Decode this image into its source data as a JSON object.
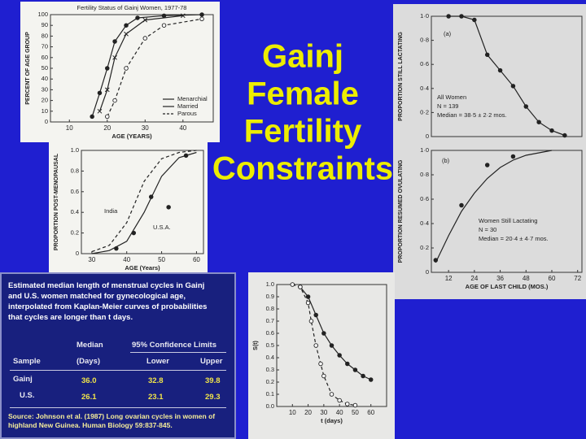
{
  "slide": {
    "title_lines": [
      "Gainj",
      "Female",
      "Fertility",
      "Constraints"
    ]
  },
  "chart_data": [
    {
      "type": "line",
      "title": "Fertility Status of Gainj Women, 1977-78",
      "x_label": "AGE (YEARS)",
      "y_label": "PERCENT OF AGE GROUP",
      "xlim": [
        5,
        48
      ],
      "xticks": [
        10,
        20,
        30,
        40
      ],
      "ylim": [
        0,
        100
      ],
      "yticks": [
        0,
        10,
        20,
        30,
        40,
        50,
        60,
        70,
        80,
        90,
        100
      ],
      "legend": "lower right",
      "series": [
        {
          "name": "Menarchial",
          "color": "#222222",
          "line": "solid",
          "marker": "filled-circle",
          "x": [
            16,
            18,
            20,
            22,
            25,
            28,
            35,
            45
          ],
          "values": [
            5,
            27,
            50,
            75,
            90,
            97,
            99,
            100
          ]
        },
        {
          "name": "Married",
          "color": "#222222",
          "line": "solid",
          "marker": "x",
          "x": [
            18,
            20,
            22,
            25,
            30,
            40
          ],
          "values": [
            10,
            30,
            60,
            82,
            95,
            99
          ]
        },
        {
          "name": "Parous",
          "color": "#222222",
          "line": "dashed",
          "marker": "open-circle",
          "x": [
            20,
            22,
            25,
            30,
            35,
            45
          ],
          "values": [
            5,
            20,
            50,
            78,
            90,
            96
          ]
        }
      ]
    },
    {
      "type": "line",
      "x_label": "AGE (Years)",
      "y_label": "PROPORTION POST-MENOPAUSAL",
      "xlim": [
        27,
        62
      ],
      "xticks": [
        30,
        40,
        50,
        60
      ],
      "ylim": [
        0,
        1
      ],
      "yticks": [
        0,
        0.2,
        0.4,
        0.6,
        0.8,
        {
          "value": 1,
          "label": "1.0"
        }
      ],
      "annotations": [
        "India",
        "U.S.A."
      ],
      "series": [
        {
          "color": "#222222",
          "line": "dashed",
          "marker": "none",
          "x": [
            30,
            35,
            40,
            45,
            50,
            55,
            60
          ],
          "values": [
            0.02,
            0.08,
            0.3,
            0.7,
            0.92,
            0.98,
            1
          ]
        },
        {
          "color": "#222222",
          "line": "solid",
          "marker": "none",
          "x": [
            30,
            35,
            40,
            45,
            50,
            55,
            60
          ],
          "values": [
            0,
            0.03,
            0.12,
            0.4,
            0.75,
            0.93,
            0.98
          ]
        },
        {
          "color": "#222222",
          "line": "none",
          "marker": "filled-circle",
          "x": [
            37,
            42,
            47,
            52,
            57
          ],
          "values": [
            0.05,
            0.2,
            0.55,
            0.45,
            0.95
          ]
        }
      ]
    },
    {
      "type": "line",
      "y_label": "PROPORTION STILL LACTATING",
      "xlim": [
        4,
        74
      ],
      "ylim": [
        0,
        1
      ],
      "yticks": [
        0,
        {
          "value": 0.2,
          "label": "0·2"
        },
        {
          "value": 0.4,
          "label": "0·4"
        },
        {
          "value": 0.6,
          "label": "0·6"
        },
        {
          "value": 0.8,
          "label": "0·8"
        },
        {
          "value": 1,
          "label": "1·0"
        }
      ],
      "annotations": [
        "(a)",
        "All Women",
        "N = 139",
        "Median = 38·5 ± 2·2 mos."
      ],
      "series": [
        {
          "color": "#222222",
          "line": "solid",
          "marker": "filled-circle",
          "x": [
            12,
            18,
            24,
            30,
            36,
            42,
            48,
            54,
            60,
            66
          ],
          "values": [
            1,
            1,
            0.97,
            0.68,
            0.55,
            0.42,
            0.25,
            0.12,
            0.05,
            0.01
          ]
        }
      ]
    },
    {
      "type": "line",
      "x_label": "AGE OF LAST CHILD (MOS.)",
      "y_label": "PROPORTION RESUMED OVULATING",
      "xlim": [
        4,
        74
      ],
      "xticks": [
        12,
        24,
        36,
        48,
        60,
        72
      ],
      "ylim": [
        0,
        1
      ],
      "yticks": [
        0,
        {
          "value": 0.2,
          "label": "0·2"
        },
        {
          "value": 0.4,
          "label": "0·4"
        },
        {
          "value": 0.6,
          "label": "0·6"
        },
        {
          "value": 0.8,
          "label": "0·8"
        },
        {
          "value": 1,
          "label": "1·0"
        }
      ],
      "annotations": [
        "(b)",
        "Women Still Lactating",
        "N = 30",
        "Median = 20·4 ± 4·7 mos."
      ],
      "series": [
        {
          "color": "#222222",
          "line": "solid",
          "marker": "none",
          "x": [
            6,
            12,
            18,
            24,
            30,
            36,
            42,
            48,
            54,
            60
          ],
          "values": [
            0.08,
            0.3,
            0.5,
            0.65,
            0.77,
            0.86,
            0.92,
            0.96,
            0.98,
            1
          ]
        },
        {
          "color": "#222222",
          "line": "none",
          "marker": "filled-circle",
          "x": [
            6,
            18,
            30,
            42
          ],
          "values": [
            0.1,
            0.55,
            0.88,
            0.95
          ]
        }
      ]
    },
    {
      "type": "line",
      "x_label": "t (days)",
      "y_label": "S(t)",
      "xlim": [
        0,
        70
      ],
      "xticks": [
        10,
        20,
        30,
        40,
        50,
        60
      ],
      "ylim": [
        0,
        1
      ],
      "yticks": [
        {
          "value": 0,
          "label": "0.0"
        },
        0.1,
        0.2,
        0.3,
        0.4,
        0.5,
        0.6,
        0.7,
        0.8,
        0.9,
        {
          "value": 1,
          "label": "1.0"
        }
      ],
      "series": [
        {
          "color": "#222222",
          "line": "solid",
          "marker": "filled-circle",
          "x": [
            15,
            20,
            25,
            30,
            35,
            40,
            45,
            50,
            55,
            60
          ],
          "values": [
            0.98,
            0.9,
            0.75,
            0.6,
            0.5,
            0.42,
            0.35,
            0.3,
            0.25,
            0.22
          ]
        },
        {
          "color": "#222222",
          "line": "dashed",
          "marker": "open-circle",
          "x": [
            10,
            15,
            20,
            22,
            25,
            28,
            30,
            35,
            40,
            45,
            50
          ],
          "values": [
            1,
            0.98,
            0.85,
            0.7,
            0.5,
            0.35,
            0.25,
            0.1,
            0.05,
            0.02,
            0.01
          ]
        }
      ]
    }
  ],
  "table": {
    "caption_lines": [
      "Estimated median length of menstrual cycles in Gainj",
      "and U.S. women matched for gynecological age,",
      "interpolated from Kaplan-Meier curves of probabilities",
      "that cycles are longer than t days."
    ],
    "header": {
      "median": "Median",
      "ci": "95% Confidence Limits",
      "sample": "Sample",
      "days": "(Days)",
      "lower": "Lower",
      "upper": "Upper"
    },
    "rows": [
      [
        "Gainj",
        "36.0",
        "32.8",
        "39.8"
      ],
      [
        "U.S.",
        "26.1",
        "23.1",
        "29.3"
      ]
    ],
    "source_lines": [
      "Source: Johnson et al. (1987) Long ovarian cycles in women of",
      "highland New Guinea.  Human Biology 59:837-845."
    ]
  }
}
